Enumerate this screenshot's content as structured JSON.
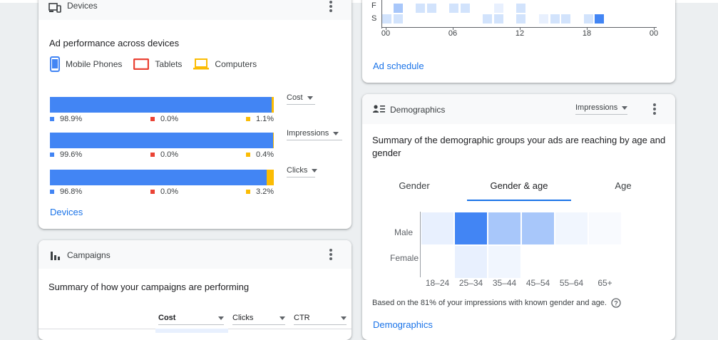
{
  "devices": {
    "title": "Devices",
    "subtitle": "Ad performance across devices",
    "legend": [
      {
        "label": "Mobile Phones",
        "color": "#4285f4",
        "icon": "mobile-phone-icon"
      },
      {
        "label": "Tablets",
        "color": "#ea4335",
        "icon": "tablet-icon"
      },
      {
        "label": "Computers",
        "color": "#fbbc04",
        "icon": "computer-icon"
      }
    ],
    "metrics": [
      {
        "label": "Cost",
        "mobile": "98.9%",
        "tablet": "0.0%",
        "computer": "1.1%",
        "mobile_share": 98.9,
        "tablet_share": 0.0,
        "computer_share": 1.1
      },
      {
        "label": "Impressions",
        "mobile": "99.6%",
        "tablet": "0.0%",
        "computer": "0.4%",
        "mobile_share": 99.6,
        "tablet_share": 0.0,
        "computer_share": 0.4
      },
      {
        "label": "Clicks",
        "mobile": "96.8%",
        "tablet": "0.0%",
        "computer": "3.2%",
        "mobile_share": 96.8,
        "tablet_share": 0.0,
        "computer_share": 3.2
      }
    ],
    "link": "Devices"
  },
  "campaigns": {
    "title": "Campaigns",
    "subtitle": "Summary of how your campaigns are performing",
    "columns": [
      "Cost",
      "Clicks",
      "CTR"
    ]
  },
  "schedule": {
    "day_labels": [
      "F",
      "S"
    ],
    "hour_ticks": [
      "00",
      "06",
      "12",
      "18",
      "00"
    ],
    "link": "Ad schedule"
  },
  "demographics": {
    "title": "Demographics",
    "metric_select": "Impressions",
    "subtitle": "Summary of the demographic groups your ads are reaching by age and gender",
    "tabs": [
      "Gender",
      "Gender & age",
      "Age"
    ],
    "active_tab": "Gender & age",
    "rows": [
      "Male",
      "Female"
    ],
    "age_groups": [
      "18–24",
      "25–34",
      "35–44",
      "45–54",
      "55–64",
      "65+"
    ],
    "note": "Based on the 81% of your impressions with known gender and age.",
    "help_icon": "help-circle-icon",
    "link": "Demographics"
  },
  "colors": {
    "accent": "#1a73e8",
    "mobile": "#4285f4",
    "tablet": "#ea4335",
    "computer": "#fbbc04"
  }
}
